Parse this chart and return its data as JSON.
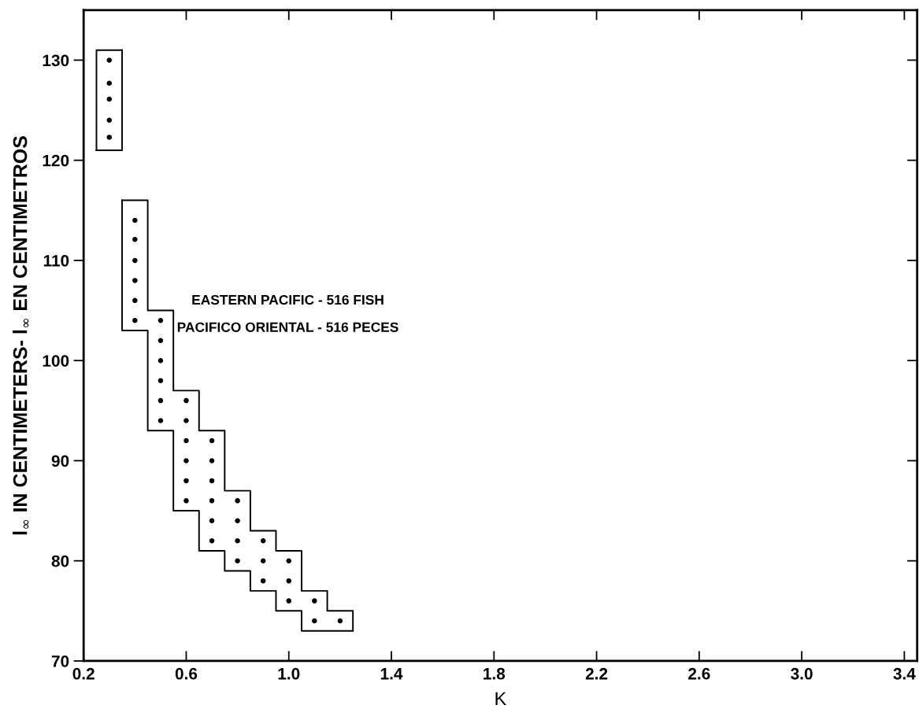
{
  "chart_data": {
    "type": "scatter",
    "xlabel": "K",
    "ylabel": "l$_{∞}$ IN CENTIMETERS- l$_{∞}$ EN CENTIMETROS",
    "annotations": [
      "EASTERN PACIFIC - 516 FISH",
      "PACIFICO ORIENTAL - 516 PECES"
    ],
    "series": [
      {
        "type": "scatter",
        "color": "#000000",
        "marker": "circle",
        "x": [
          0.3,
          0.3,
          0.3,
          0.3,
          0.3,
          0.4,
          0.4,
          0.4,
          0.4,
          0.4,
          0.4,
          0.5,
          0.5,
          0.5,
          0.5,
          0.5,
          0.5,
          0.6,
          0.6,
          0.6,
          0.6,
          0.6,
          0.6,
          0.7,
          0.7,
          0.7,
          0.7,
          0.7,
          0.7,
          0.8,
          0.8,
          0.8,
          0.8,
          0.9,
          0.9,
          0.9,
          1.0,
          1.0,
          1.0,
          1.1,
          1.1,
          1.2
        ],
        "values": [
          130,
          127.7,
          126.1,
          124,
          122.3,
          114,
          112.1,
          110,
          108,
          106,
          104,
          104,
          102,
          100,
          98,
          96,
          94,
          96,
          94,
          92,
          90,
          88,
          86,
          92,
          90,
          88,
          86,
          84,
          82,
          86,
          84,
          82,
          80,
          82,
          80,
          78,
          80,
          78,
          76,
          76,
          74,
          74
        ]
      },
      {
        "type": "step",
        "color": "#000000",
        "marker": "none",
        "x": [
          0.25,
          0.25,
          0.35
        ],
        "values": [
          121,
          131,
          131
        ]
      },
      {
        "type": "step",
        "color": "#000000",
        "marker": "none",
        "x": [
          0.25,
          0.35
        ],
        "values": [
          121,
          131
        ]
      },
      {
        "type": "step",
        "color": "#000000",
        "marker": "none",
        "x": [
          0.35,
          0.45,
          0.55,
          0.65,
          0.75,
          0.85,
          0.95,
          1.05,
          1.15,
          1.25
        ],
        "values": [
          116,
          105,
          97,
          93,
          87,
          83,
          81,
          77,
          75,
          73
        ]
      },
      {
        "type": "step",
        "color": "#000000",
        "marker": "none",
        "x": [
          0.35,
          0.35,
          0.45,
          0.55,
          0.65,
          0.75,
          0.85,
          0.95,
          1.05,
          1.25
        ],
        "values": [
          116,
          103,
          93,
          85,
          81,
          79,
          77,
          75,
          73,
          73
        ]
      }
    ],
    "xlim": [
      0.2,
      3.45
    ],
    "ylim": [
      70,
      135
    ],
    "xticks": [
      0.2,
      0.6,
      {
        "value": 1,
        "label": "1.0"
      },
      1.4,
      1.8,
      2.2,
      2.6,
      {
        "value": 3,
        "label": "3.0"
      },
      3.4
    ],
    "yticks": [
      70,
      80,
      90,
      100,
      110,
      120,
      130
    ],
    "grid": false,
    "legend": false
  }
}
